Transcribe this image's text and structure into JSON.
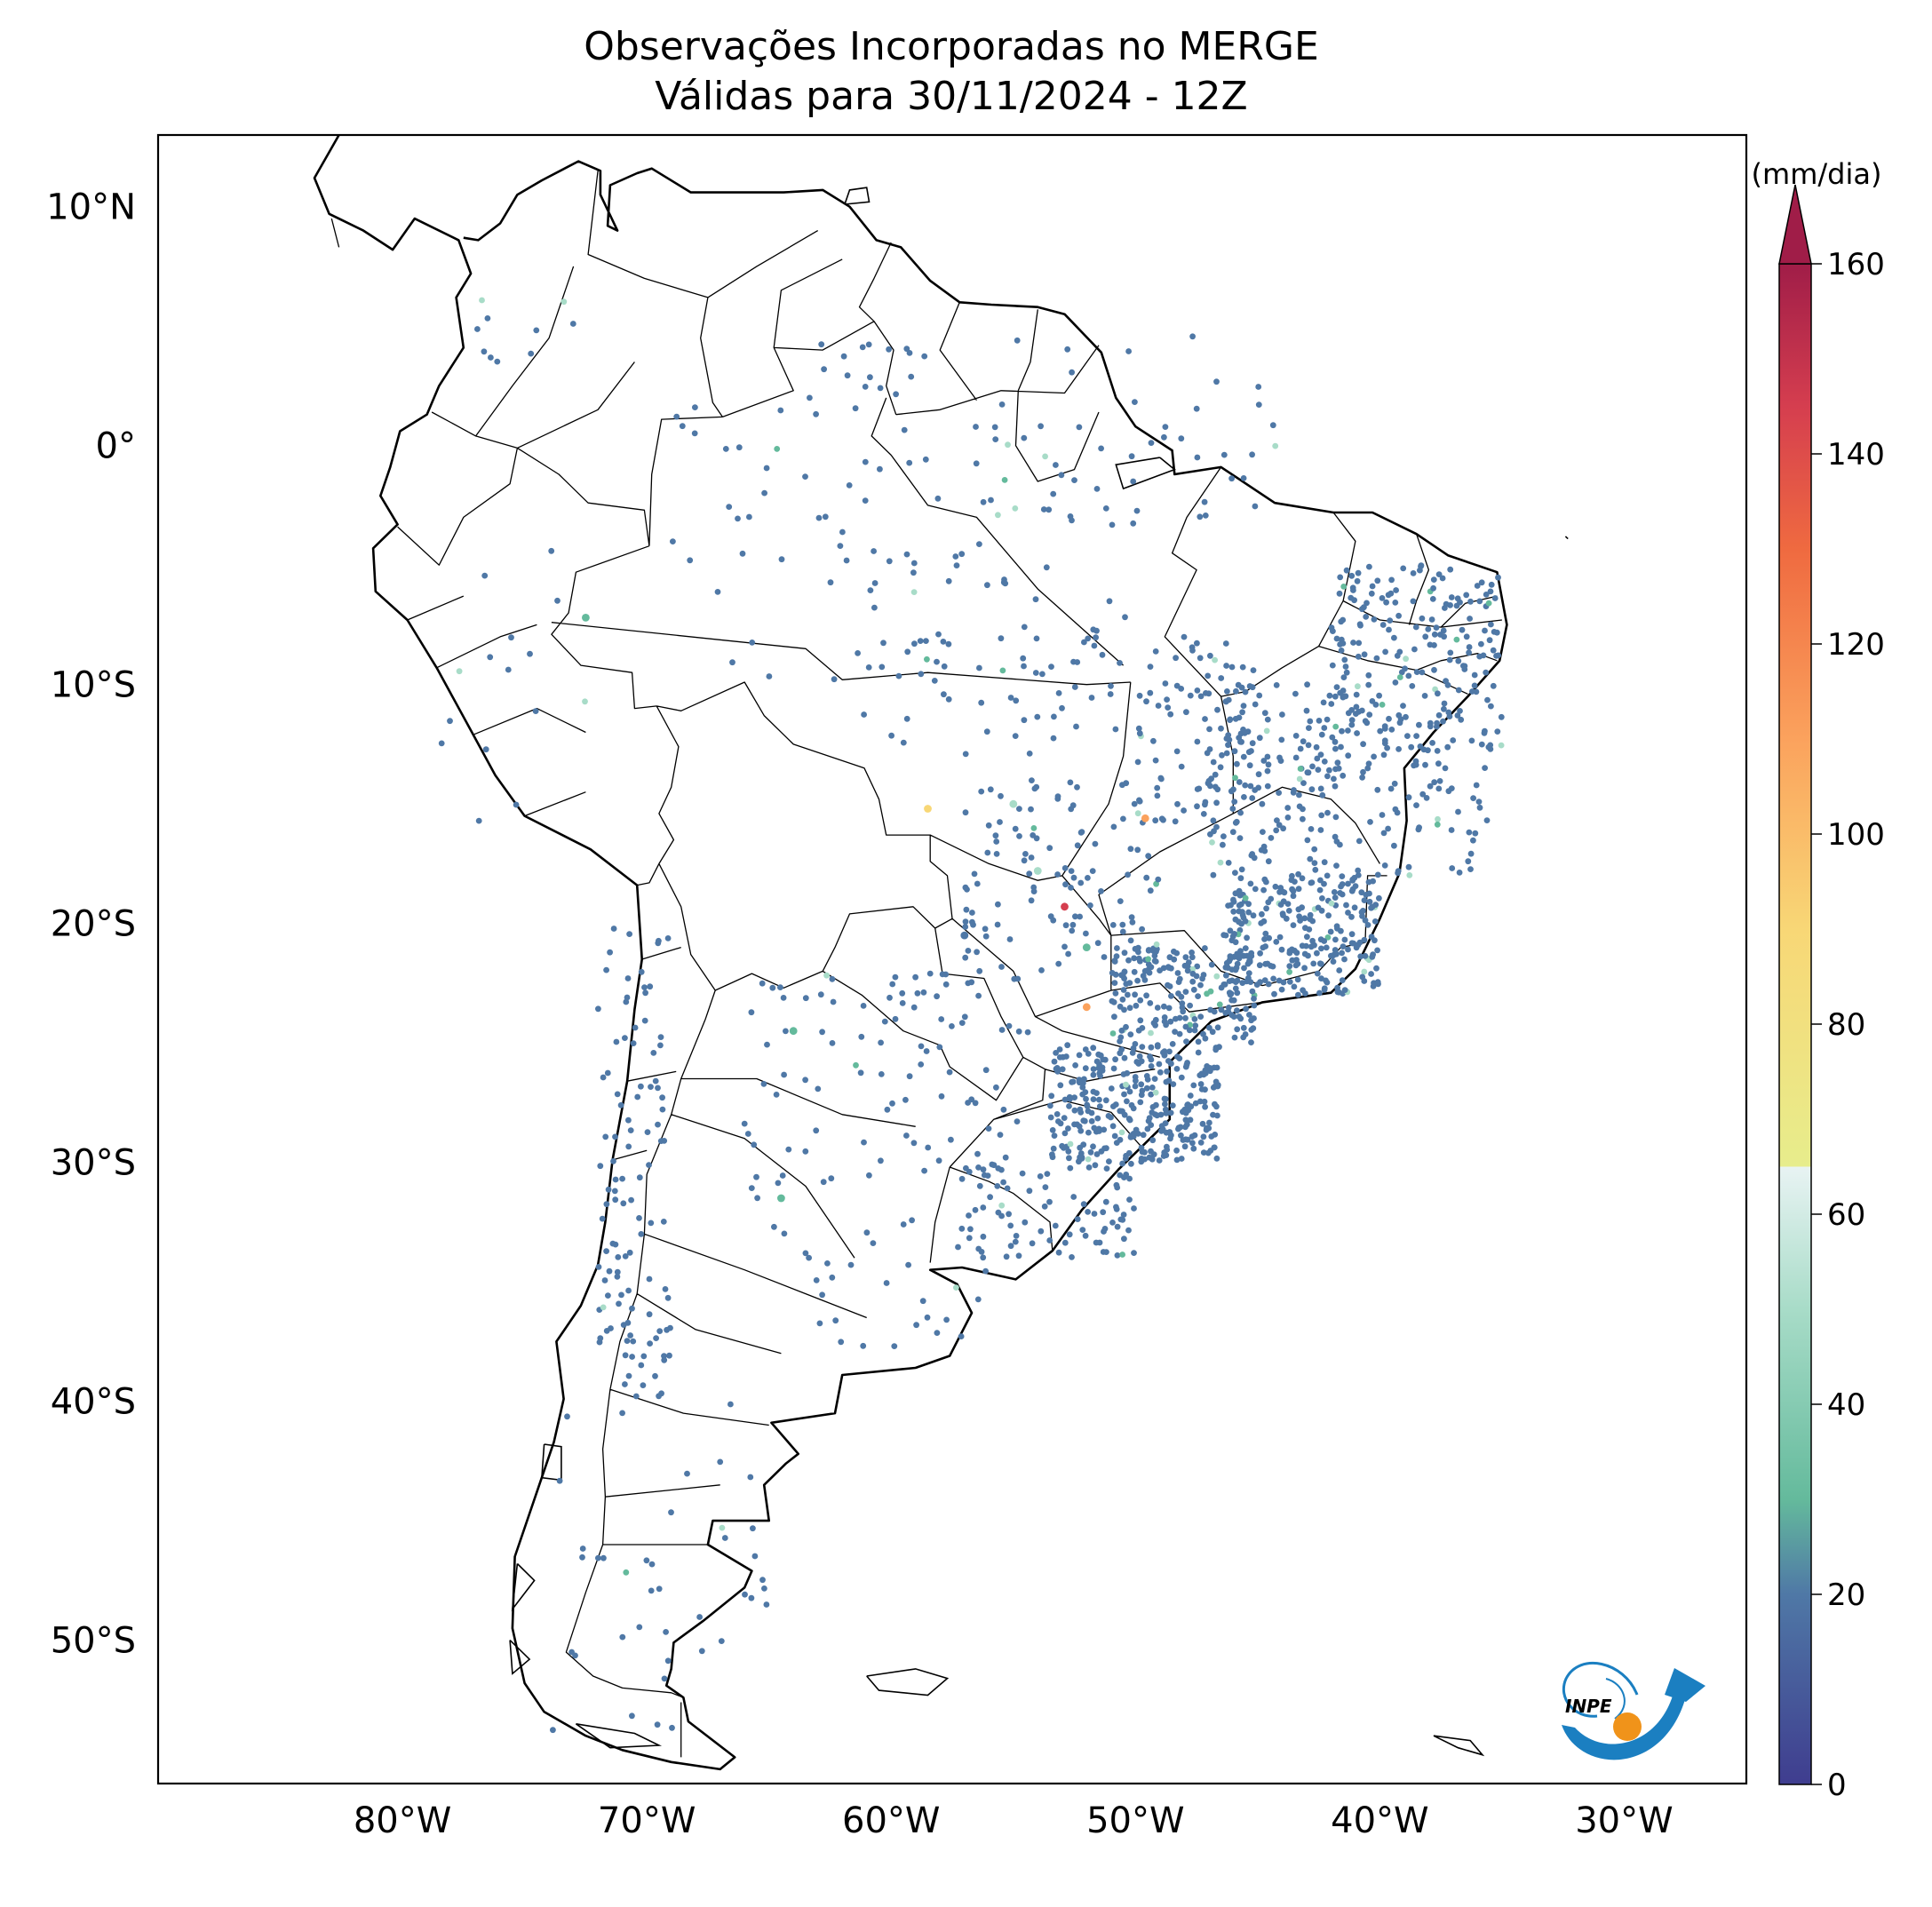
{
  "title": {
    "line1": "Observações Incorporadas no MERGE",
    "line2": "Válidas para 30/11/2024 - 12Z"
  },
  "map": {
    "lon_range": [
      -90,
      -25
    ],
    "lat_range": [
      -56,
      13
    ],
    "lat_ticks": [
      {
        "value": 10,
        "label": "10°N"
      },
      {
        "value": 0,
        "label": "0°"
      },
      {
        "value": -10,
        "label": "10°S"
      },
      {
        "value": -20,
        "label": "20°S"
      },
      {
        "value": -30,
        "label": "30°S"
      },
      {
        "value": -40,
        "label": "40°S"
      },
      {
        "value": -50,
        "label": "50°S"
      }
    ],
    "lon_ticks": [
      {
        "value": -80,
        "label": "80°W"
      },
      {
        "value": -70,
        "label": "70°W"
      },
      {
        "value": -60,
        "label": "60°W"
      },
      {
        "value": -50,
        "label": "50°W"
      },
      {
        "value": -40,
        "label": "40°W"
      },
      {
        "value": -30,
        "label": "30°W"
      }
    ],
    "outline_color": "#000000"
  },
  "colorbar": {
    "unit": "(mm/dia)",
    "range": [
      0,
      160
    ],
    "extend": "max",
    "ticks": [
      "0",
      "20",
      "40",
      "60",
      "80",
      "100",
      "120",
      "140",
      "160"
    ],
    "stops": [
      {
        "value": 0,
        "color": "#3f3d8f"
      },
      {
        "value": 20,
        "color": "#4f78a6"
      },
      {
        "value": 30,
        "color": "#64ba9c"
      },
      {
        "value": 50,
        "color": "#a8dcc8"
      },
      {
        "value": 65,
        "color": "#e8f3f3"
      },
      {
        "value": 65.01,
        "color": "#e7ed8c"
      },
      {
        "value": 90,
        "color": "#f8d776"
      },
      {
        "value": 110,
        "color": "#fba25d"
      },
      {
        "value": 130,
        "color": "#ef6a40"
      },
      {
        "value": 145,
        "color": "#d53e4f"
      },
      {
        "value": 160,
        "color": "#a01d48"
      }
    ]
  },
  "logo": {
    "text": "INPE",
    "colors": {
      "arc": "#1b7fc1",
      "sun": "#f0931a"
    }
  },
  "stations": {
    "typical_value_color": "#3f3d8f",
    "description_points": [
      {
        "lon": -52.9,
        "lat": -19.3,
        "value": 140
      },
      {
        "lon": -49.6,
        "lat": -15.6,
        "value": 105
      },
      {
        "lon": -52.0,
        "lat": -23.5,
        "value": 95
      },
      {
        "lon": -58.5,
        "lat": -15.2,
        "value": 85
      },
      {
        "lon": -54.0,
        "lat": -17.8,
        "value": 45
      },
      {
        "lon": -55.0,
        "lat": -15.0,
        "value": 35
      },
      {
        "lon": -52.0,
        "lat": -21.0,
        "value": 30
      },
      {
        "lon": -64.0,
        "lat": -24.5,
        "value": 25
      },
      {
        "lon": -64.5,
        "lat": -31.5,
        "value": 22
      },
      {
        "lon": -72.5,
        "lat": -7.2,
        "value": 30
      },
      {
        "lon": -57.0,
        "lat": -20.5,
        "value": 18
      }
    ]
  }
}
